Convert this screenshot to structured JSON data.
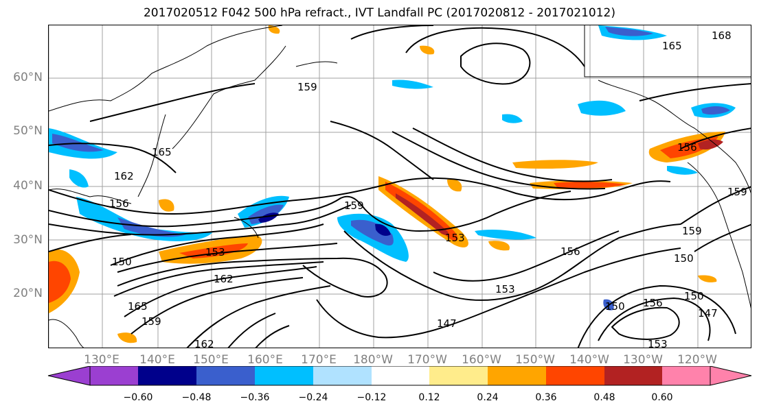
{
  "title": "2017020512 F042 500 hPa refract., IVT Landfall PC (2017020812 - 2017021012)",
  "lat_labels": [
    "60°N",
    "50°N",
    "40°N",
    "30°N",
    "20°N"
  ],
  "lon_labels": [
    "130°E",
    "140°E",
    "150°E",
    "160°E",
    "170°E",
    "180°W",
    "170°W",
    "160°W",
    "150°W",
    "140°W",
    "130°W",
    "120°W"
  ],
  "colorbar": {
    "ticks": [
      "−0.60",
      "−0.48",
      "−0.36",
      "−0.24",
      "−0.12",
      "0.12",
      "0.24",
      "0.36",
      "0.48",
      "0.60"
    ],
    "colors": [
      "#9b3fd1",
      "#00008b",
      "#3a5fcd",
      "#00bfff",
      "#b0e2ff",
      "#ffffff",
      "#ffec8b",
      "#ffa500",
      "#ff4500",
      "#b22222",
      "#ff82ab"
    ]
  },
  "contour_labels": [
    "165",
    "168",
    "159",
    "165",
    "162",
    "156",
    "159",
    "150",
    "153",
    "153",
    "156",
    "159",
    "150",
    "162",
    "165",
    "159",
    "153",
    "150",
    "156",
    "150",
    "147",
    "162",
    "147",
    "153",
    "156",
    "159"
  ],
  "colors": {
    "contour": "#000000",
    "coast": "#000000",
    "grid": "#a0a0a0",
    "tick_label": "#808080"
  }
}
